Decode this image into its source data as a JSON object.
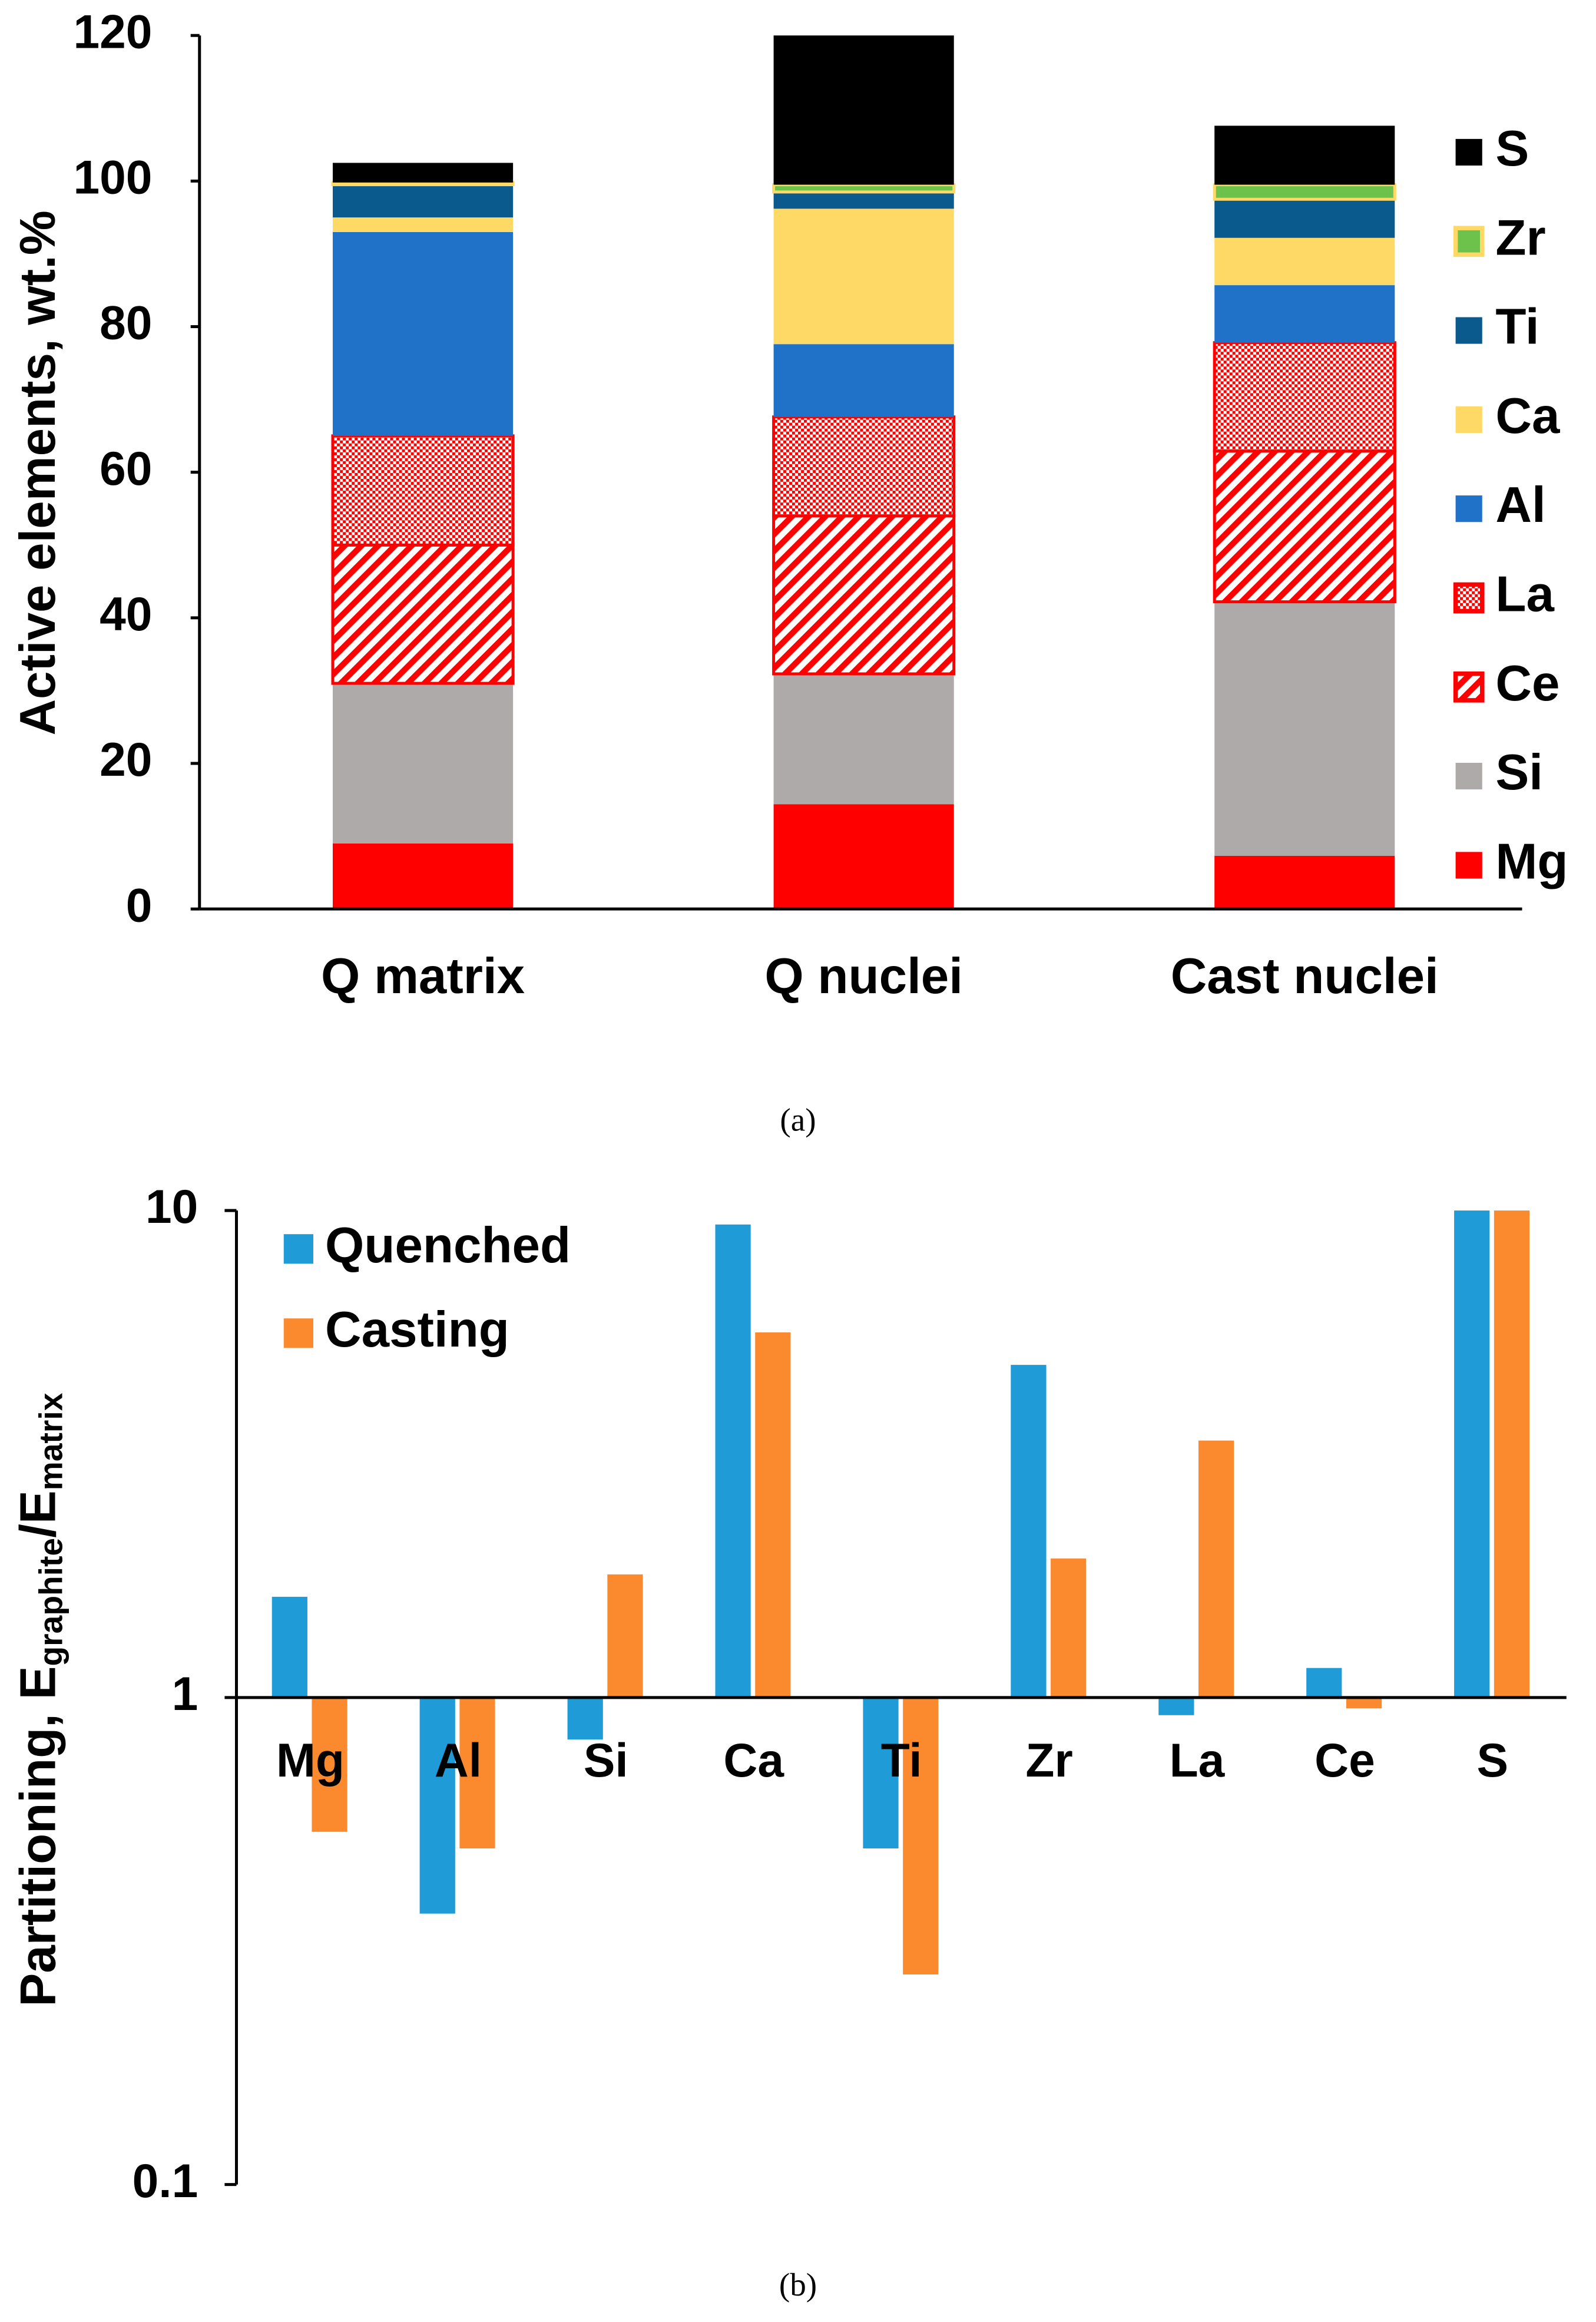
{
  "chart_data": [
    {
      "type": "stacked-bar",
      "caption": "(a)",
      "ylabel": "Active elements, wt.%",
      "categories": [
        "Q matrix",
        "Q nuclei",
        "Cast nuclei"
      ],
      "series": [
        {
          "name": "Mg",
          "color": "#ff0000",
          "values": [
            9,
            14.4,
            7.3
          ]
        },
        {
          "name": "Si",
          "color": "#aeaaaa",
          "values": [
            22,
            17.9,
            34.9
          ]
        },
        {
          "name": "Ce",
          "color": "#ff0000",
          "edgecolor": "#ff0000",
          "pattern": "diagonal",
          "values": [
            19,
            21.7,
            20.7
          ]
        },
        {
          "name": "La",
          "color": "#ff0000",
          "edgecolor": "#ff0000",
          "pattern": "checker",
          "values": [
            15,
            13.6,
            14.9
          ]
        },
        {
          "name": "Al",
          "color": "#1f72c8",
          "values": [
            28,
            10,
            7.9
          ]
        },
        {
          "name": "Ca",
          "color": "#ffd966",
          "values": [
            2,
            18.6,
            6.5
          ]
        },
        {
          "name": "Ti",
          "color": "#0b5a8e",
          "values": [
            4.5,
            2.3,
            5.3
          ]
        },
        {
          "name": "Zr",
          "color": "#6cc24a",
          "edgecolor": "#ffd966",
          "values": [
            0.3,
            1,
            2
          ]
        },
        {
          "name": "S",
          "color": "#000000",
          "values": [
            2.7,
            20.5,
            8.1
          ]
        }
      ],
      "ylim": [
        0,
        120
      ],
      "yticks": [
        0,
        20,
        40,
        60,
        80,
        100,
        120
      ],
      "grid": false,
      "legend": "right"
    },
    {
      "type": "log-bar",
      "caption": "(b)",
      "ylabel_parts": [
        "Partitioning, E",
        "graphite",
        "/E",
        "matrix"
      ],
      "categories": [
        "Mg",
        "Al",
        "Si",
        "Ca",
        "Ti",
        "Zr",
        "La",
        "Ce",
        "S"
      ],
      "series": [
        {
          "name": "Quenched",
          "color": "#1f9bd7",
          "values": [
            1.61,
            0.36,
            0.82,
            9.36,
            0.49,
            4.82,
            0.92,
            1.15,
            10
          ]
        },
        {
          "name": "Casting",
          "color": "#fb8a2e",
          "values": [
            0.53,
            0.49,
            1.79,
            5.62,
            0.27,
            1.93,
            3.37,
            0.95,
            10
          ]
        }
      ],
      "log_scale": true,
      "x_axis_crosses": 1,
      "ylim": [
        0.1,
        10
      ],
      "yticks": [
        0.1,
        1,
        10
      ],
      "grid": false,
      "legend": "top-left"
    }
  ]
}
